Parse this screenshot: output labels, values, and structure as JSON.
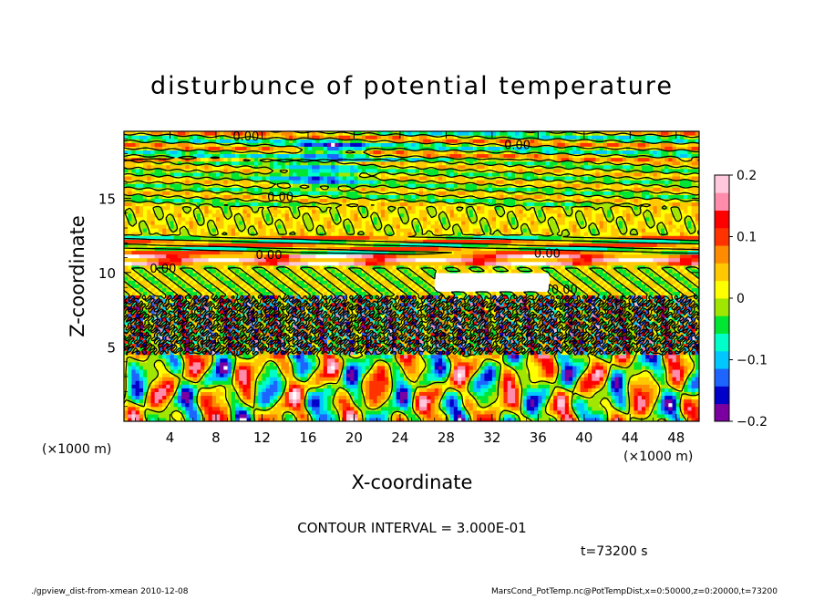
{
  "chart_data": {
    "type": "heatmap",
    "title": "disturbunce of potential temperature",
    "xlabel": "X-coordinate",
    "ylabel": "Z-coordinate",
    "x_unit_left": "(×1000 m)",
    "x_unit_right": "(×1000 m)",
    "xlim": [
      0,
      50
    ],
    "ylim": [
      0,
      19.5
    ],
    "x_ticks": [
      "4",
      "8",
      "12",
      "16",
      "20",
      "24",
      "28",
      "32",
      "36",
      "40",
      "44",
      "48"
    ],
    "y_ticks": [
      "5",
      "10",
      "15"
    ],
    "colorbar": {
      "min": -0.2,
      "max": 0.2,
      "tick_labels": [
        "0.2",
        "0.1",
        "0",
        "−0.1",
        "−0.2"
      ],
      "colors": [
        "#7a00a0",
        "#0000c8",
        "#1e64ff",
        "#00c8ff",
        "#00ffc8",
        "#00e632",
        "#a0e600",
        "#ffff00",
        "#ffc800",
        "#ff8c00",
        "#ff3200",
        "#ff0000",
        "#ff8caa",
        "#ffc8dc"
      ]
    },
    "contour_labels": [
      "0.00",
      "0.00",
      "0.00",
      "0.00",
      "0.00",
      "0.00",
      "0.00"
    ],
    "contour_interval_text": "CONTOUR INTERVAL = 3.000E-01",
    "time_text": "t=73200 s"
  },
  "footer": {
    "left": "./gpview_dist-from-xmean  2010-12-08",
    "right": "MarsCond_PotTemp.nc@PotTempDist,x=0:50000,z=0:20000,t=73200"
  }
}
